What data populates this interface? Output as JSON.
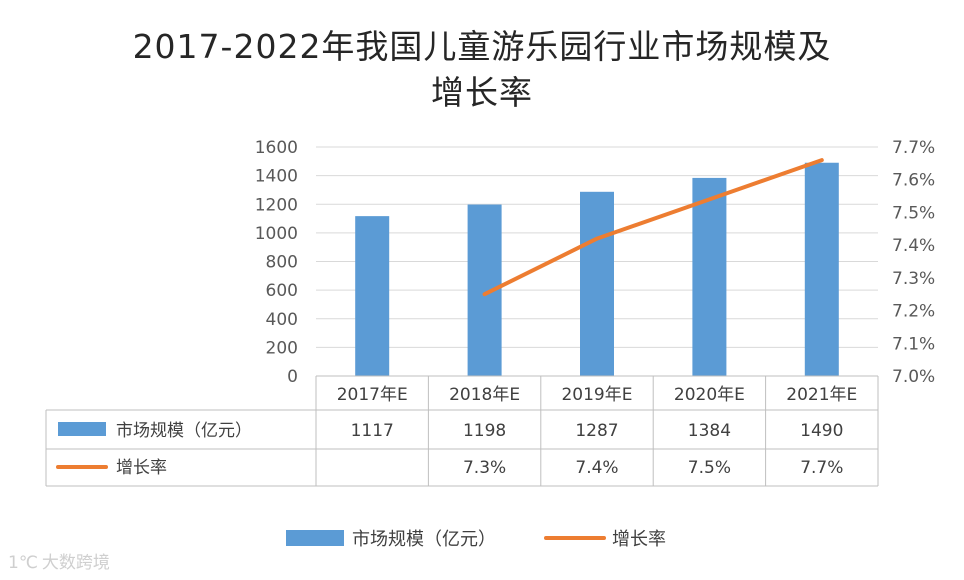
{
  "chart_data": {
    "type": "bar",
    "title_lines": [
      "2017-2022年我国儿童游乐园行业市场规模及",
      "增长率"
    ],
    "categories": [
      "2017年E",
      "2018年E",
      "2019年E",
      "2020年E",
      "2021年E"
    ],
    "series": [
      {
        "name": "市场规模（亿元）",
        "type": "bar",
        "axis": "left",
        "values": [
          1117,
          1198,
          1287,
          1384,
          1490
        ],
        "labels": [
          "1117",
          "1198",
          "1287",
          "1384",
          "1490"
        ],
        "color": "#5b9bd5"
      },
      {
        "name": "增长率",
        "type": "line",
        "axis": "right",
        "values": [
          null,
          7.25,
          7.42,
          7.54,
          7.66
        ],
        "labels": [
          "",
          "7.3%",
          "7.4%",
          "7.5%",
          "7.7%"
        ],
        "color": "#ed7d31"
      }
    ],
    "y_left": {
      "min": 0,
      "max": 1600,
      "ticks": [
        "0",
        "200",
        "400",
        "600",
        "800",
        "1000",
        "1200",
        "1400",
        "1600"
      ]
    },
    "y_right": {
      "min": 7.0,
      "max": 7.7,
      "ticks": [
        "7.0%",
        "7.1%",
        "7.2%",
        "7.3%",
        "7.4%",
        "7.5%",
        "7.6%",
        "7.7%"
      ]
    },
    "grid": true,
    "legend_position": "bottom",
    "data_table": true
  },
  "watermark": {
    "logo_text": "1℃",
    "text": "大数跨境"
  }
}
